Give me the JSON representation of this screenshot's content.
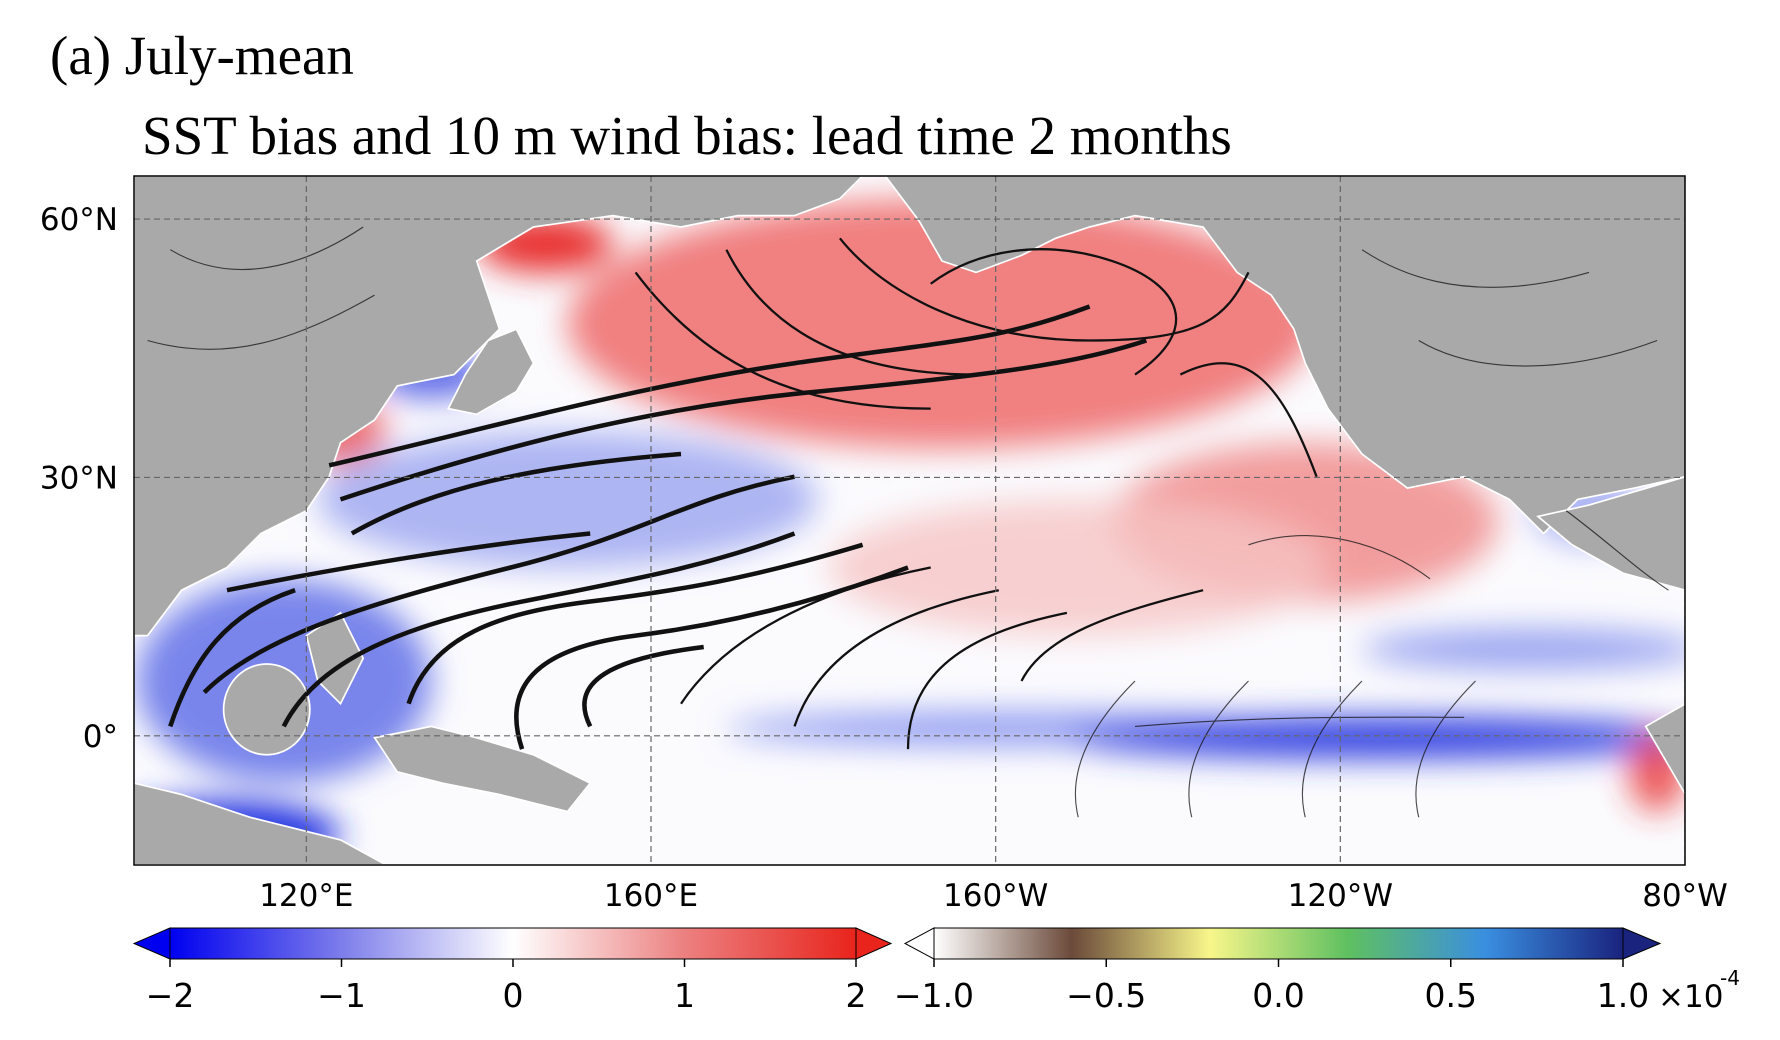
{
  "chart_data": {
    "type": "map",
    "title": "(a) July-mean",
    "subtitle": "SST bias and 10 m wind bias: lead time 2 months",
    "xlim": [
      100,
      280
    ],
    "xticks": [
      {
        "value": 120,
        "label": "120°E"
      },
      {
        "value": 160,
        "label": "160°E"
      },
      {
        "value": 200,
        "label": "160°W"
      },
      {
        "value": 240,
        "label": "120°W"
      },
      {
        "value": 280,
        "label": "80°W"
      }
    ],
    "ylim": [
      -15,
      65
    ],
    "yticks": [
      {
        "value": 0,
        "label": "0°"
      },
      {
        "value": 30,
        "label": "30°N"
      },
      {
        "value": 60,
        "label": "60°N"
      }
    ],
    "grid": true,
    "colorbars": [
      {
        "lim": [
          -2,
          2
        ],
        "ticks": [
          {
            "value": -2,
            "label": "−2"
          },
          {
            "value": -1,
            "label": "−1"
          },
          0,
          1,
          2
        ],
        "colors": [
          "#0000f0",
          "#7d7deb",
          "#ffffff",
          "#ec8080",
          "#e8241c"
        ]
      },
      {
        "lim": [
          -1,
          1
        ],
        "ticks": [
          {
            "value": -1,
            "label": "−1.0"
          },
          {
            "value": -0.5,
            "label": "−0.5"
          },
          {
            "value": 0,
            "label": "0.0"
          },
          0.5,
          {
            "value": 1,
            "label": "1.0"
          }
        ],
        "colors": [
          "#ffffff",
          "#6b4a3a",
          "#f8f68a",
          "#5fc060",
          "#3a8fe0",
          "#1a237e"
        ],
        "multiplier": "×10",
        "exponent": "-4"
      }
    ]
  }
}
